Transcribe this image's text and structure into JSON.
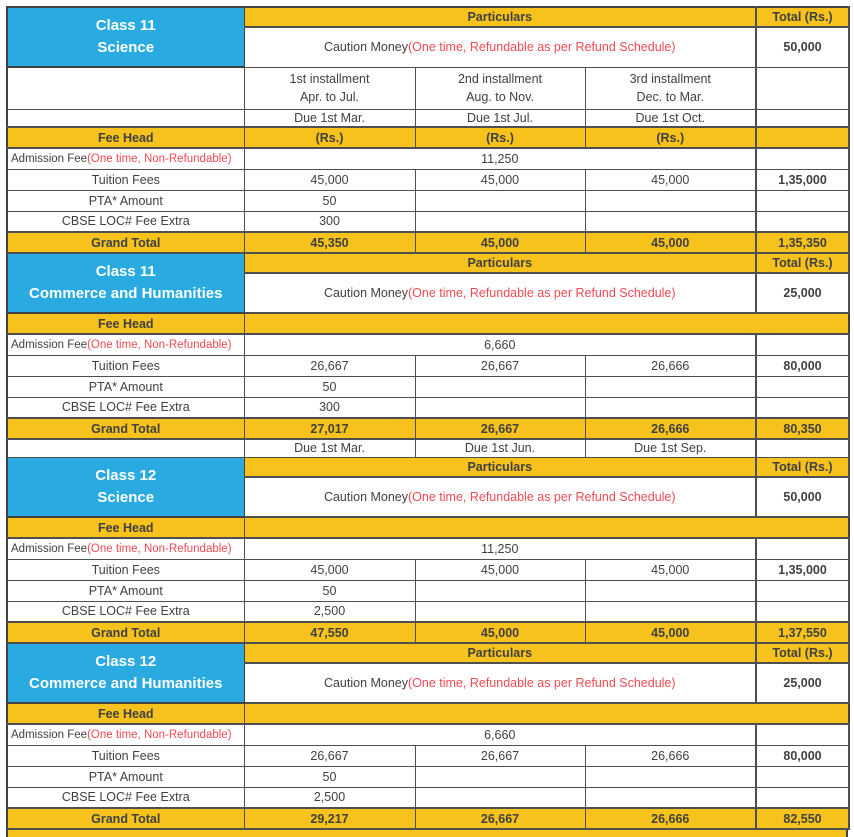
{
  "page": {
    "title": "School Fee Structure"
  },
  "palette": {
    "yellow": "#F6C21B",
    "blue": "#29ABE2",
    "red": "#EF4B53",
    "text": "#414042",
    "border": "#414042"
  },
  "labels": {
    "particulars": "Particulars",
    "total": "Total (Rs.)",
    "fee_head": "Fee Head",
    "rs": "(Rs.)",
    "grand_total": "Grand Total",
    "caution": "Caution Money",
    "caution_note": "(One time, Refundable as per Refund Schedule)",
    "admission": "Admission Fee",
    "admission_note": "(One time, Non-Refundable)"
  },
  "installment_headers": [
    {
      "line1": "1st installment",
      "line2": "Apr. to Jul."
    },
    {
      "line1": "2nd installment",
      "line2": "Aug. to Nov."
    },
    {
      "line1": "3rd installment",
      "line2": "Dec. to Mar."
    }
  ],
  "installment_due": [
    "Due 1st Mar.",
    "Due 1st Jul.",
    "Due 1st Oct."
  ],
  "sections": [
    {
      "class_line1": "Class 11",
      "class_line2": "Science",
      "caution_total": "50,000",
      "show_installment_rows": true,
      "show_rs_row": true,
      "admission_value": "11,250",
      "fee_rows": [
        {
          "label": "Tuition Fees",
          "values": [
            "45,000",
            "45,000",
            "45,000"
          ],
          "total": "1,35,000"
        },
        {
          "label": "PTA* Amount",
          "values": [
            "50",
            "",
            ""
          ],
          "total": ""
        },
        {
          "label": "CBSE LOC# Fee Extra",
          "values": [
            "300",
            "",
            ""
          ],
          "total": ""
        }
      ],
      "grand_total": {
        "values": [
          "45,350",
          "45,000",
          "45,000"
        ],
        "total": "1,35,350"
      },
      "due_footer": null
    },
    {
      "class_line1": "Class 11",
      "class_line2": "Commerce and Humanities",
      "caution_total": "25,000",
      "show_installment_rows": false,
      "show_rs_row": false,
      "admission_value": "6,660",
      "fee_rows": [
        {
          "label": "Tuition Fees",
          "values": [
            "26,667",
            "26,667",
            "26,666"
          ],
          "total": "80,000"
        },
        {
          "label": "PTA* Amount",
          "values": [
            "50",
            "",
            ""
          ],
          "total": ""
        },
        {
          "label": "CBSE LOC# Fee Extra",
          "values": [
            "300",
            "",
            ""
          ],
          "total": ""
        }
      ],
      "grand_total": {
        "values": [
          "27,017",
          "26,667",
          "26,666"
        ],
        "total": "80,350"
      },
      "due_footer": [
        "Due 1st Mar.",
        "Due 1st Jun.",
        "Due 1st Sep."
      ]
    },
    {
      "class_line1": "Class 12",
      "class_line2": "Science",
      "caution_total": "50,000",
      "show_installment_rows": false,
      "show_rs_row": false,
      "admission_value": "11,250",
      "fee_rows": [
        {
          "label": "Tuition Fees",
          "values": [
            "45,000",
            "45,000",
            "45,000"
          ],
          "total": "1,35,000"
        },
        {
          "label": "PTA* Amount",
          "values": [
            "50",
            "",
            ""
          ],
          "total": ""
        },
        {
          "label": "CBSE LOC# Fee Extra",
          "values": [
            "2,500",
            "",
            ""
          ],
          "total": ""
        }
      ],
      "grand_total": {
        "values": [
          "47,550",
          "45,000",
          "45,000"
        ],
        "total": "1,37,550"
      },
      "due_footer": null
    },
    {
      "class_line1": "Class 12",
      "class_line2": "Commerce and Humanities",
      "caution_total": "25,000",
      "show_installment_rows": false,
      "show_rs_row": false,
      "admission_value": "6,660",
      "fee_rows": [
        {
          "label": "Tuition Fees",
          "values": [
            "26,667",
            "26,667",
            "26,666"
          ],
          "total": "80,000"
        },
        {
          "label": "PTA* Amount",
          "values": [
            "50",
            "",
            ""
          ],
          "total": ""
        },
        {
          "label": "CBSE LOC# Fee Extra",
          "values": [
            "2,500",
            "",
            ""
          ],
          "total": ""
        }
      ],
      "grand_total": {
        "values": [
          "29,217",
          "26,667",
          "26,666"
        ],
        "total": "82,550"
      },
      "due_footer": null
    }
  ]
}
